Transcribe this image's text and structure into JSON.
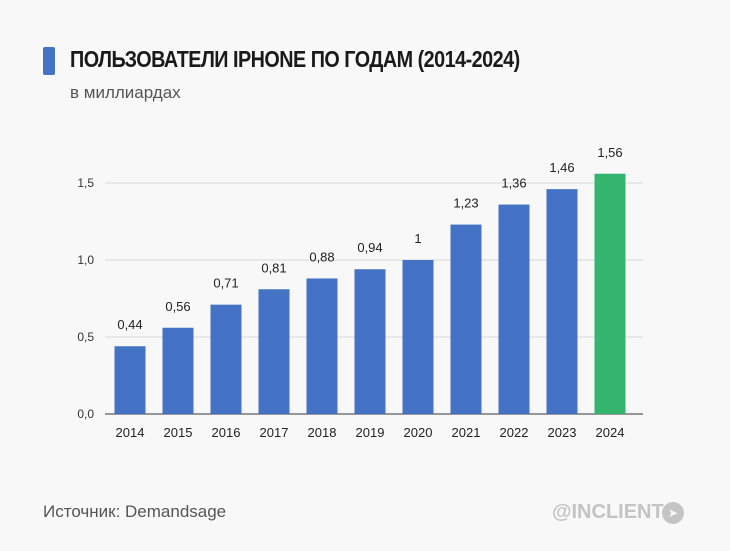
{
  "header": {
    "title": "ПОЛЬЗОВАТЕЛИ IPHONE ПО ГОДАМ (2014-2024)",
    "subtitle": "в миллиардах",
    "accent_color": "#4472c4"
  },
  "footer": {
    "source": "Источник: Demandsage",
    "brand": "@INCLIENT",
    "brand_icon": "telegram-icon"
  },
  "chart_data": {
    "type": "bar",
    "categories": [
      "2014",
      "2015",
      "2016",
      "2017",
      "2018",
      "2019",
      "2020",
      "2021",
      "2022",
      "2023",
      "2024"
    ],
    "values": [
      0.44,
      0.56,
      0.71,
      0.81,
      0.88,
      0.94,
      1,
      1.23,
      1.36,
      1.46,
      1.56
    ],
    "data_labels": [
      "0,44",
      "0,56",
      "0,71",
      "0,81",
      "0,88",
      "0,94",
      "1",
      "1,23",
      "1,36",
      "1,46",
      "1,56"
    ],
    "yticks": [
      0,
      0.5,
      1.0,
      1.5
    ],
    "ytick_labels": [
      "0,0",
      "0,5",
      "1,0",
      "1,5"
    ],
    "ylim": [
      0,
      1.5
    ],
    "grid": true,
    "bar_color": "#4472c4",
    "highlight_color": "#33b56d",
    "highlight_index": 10
  }
}
